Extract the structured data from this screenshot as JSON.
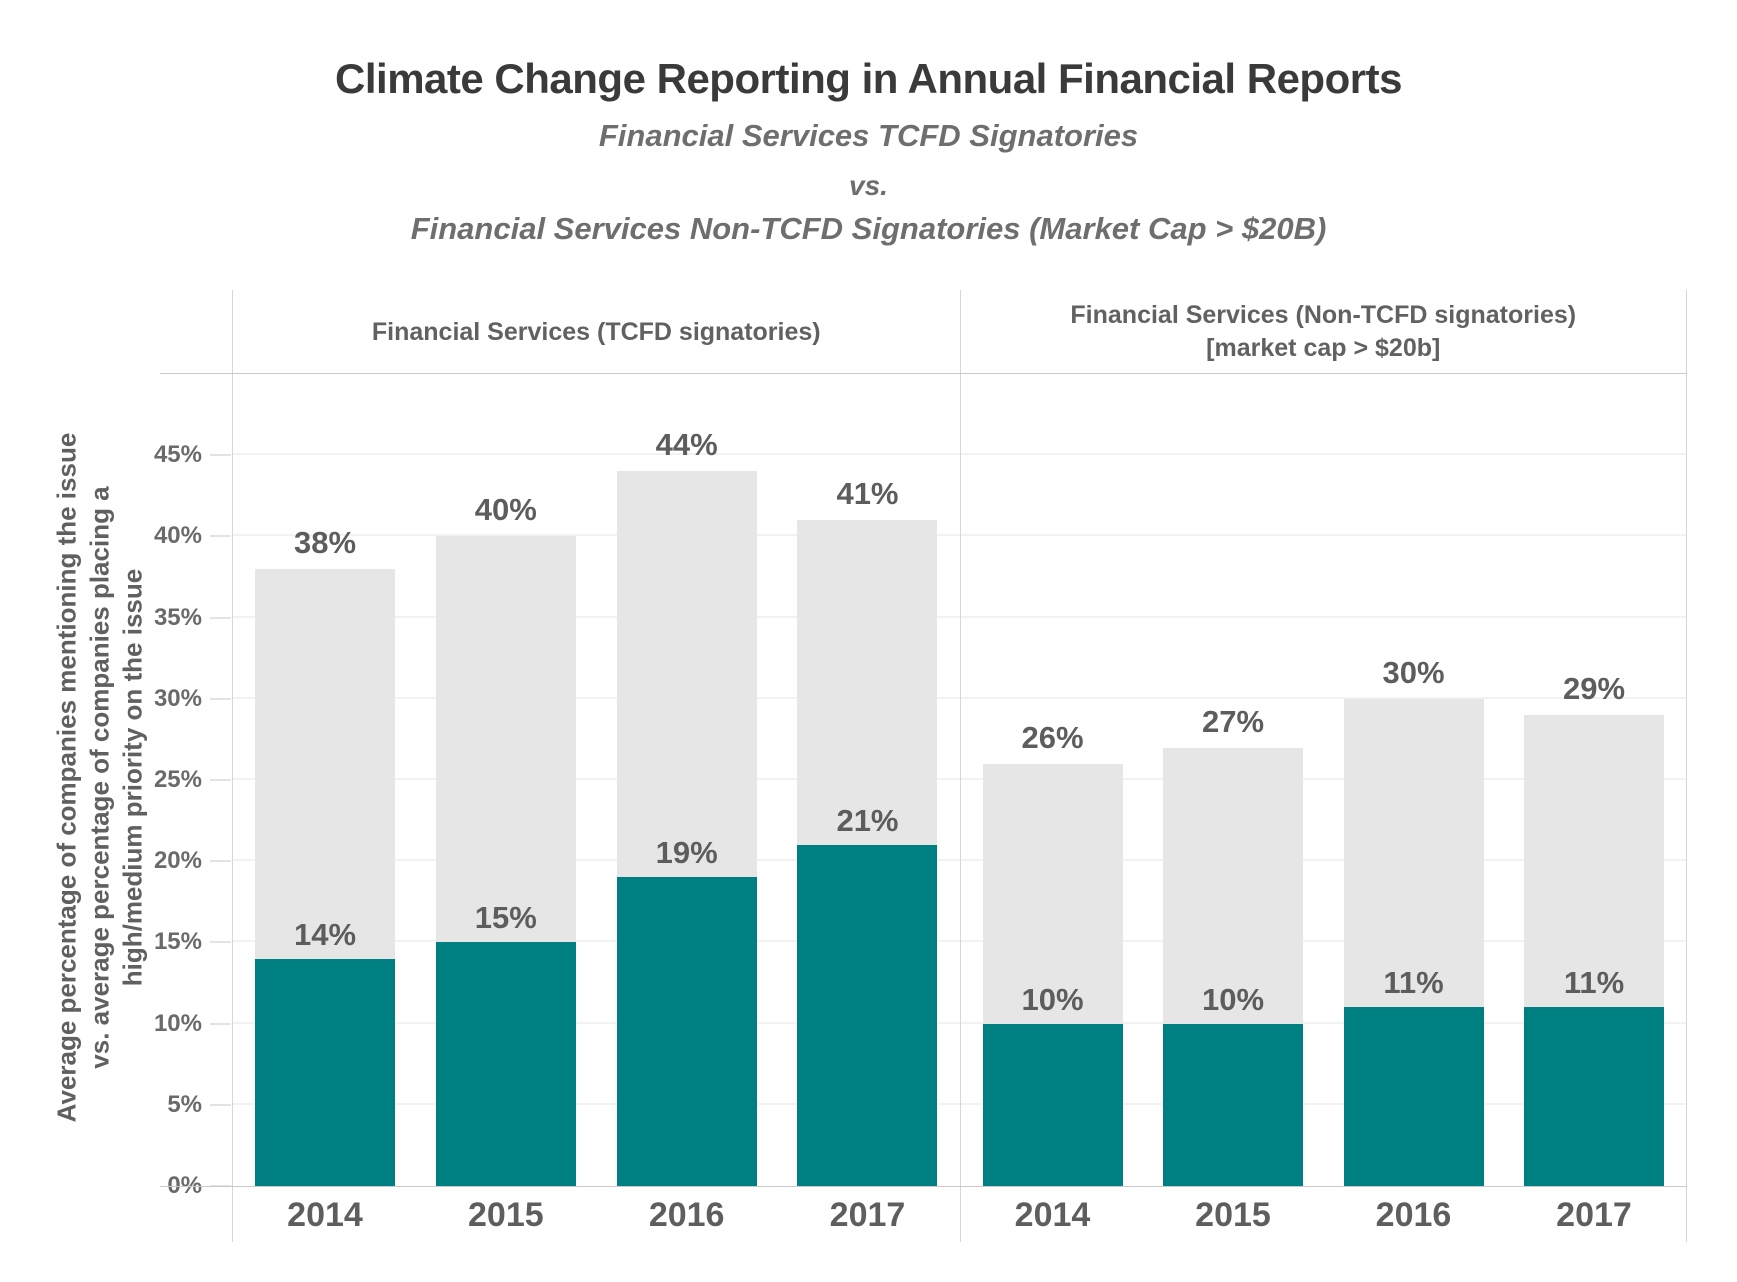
{
  "page_title": "Climate Change Reporting in Annual Financial Reports",
  "header": {
    "title": "Climate Change Reporting in Annual Financial Reports",
    "subtitle_line1": "Financial Services TCFD Signatories",
    "vs_label": "vs.",
    "subtitle_line2": "Financial Services Non-TCFD Signatories (Market Cap > $20B)"
  },
  "colors": {
    "mention_bar": "#e6e6e6",
    "priority_bar": "#007f82",
    "grid_line": "#f2f2f2",
    "panel_border": "#d6d6d6",
    "axis_line": "#c9c9c9",
    "title_text": "#3a3a3a",
    "subtitle_text": "#6e6e6e",
    "value_label_text": "#5d5d5d"
  },
  "chart_data": {
    "type": "bar",
    "title": "Climate Change Reporting in Annual Financial Reports",
    "subtitle": "Financial Services TCFD Signatories vs. Financial Services Non-TCFD Signatories (Market Cap > $20B)",
    "ylabel": "Average percentage of companies mentioning the issue vs. average percentage of companies placing a high/medium priority on the issue",
    "ylabel_lines": [
      "Average percentage of companies mentioning the issue",
      "vs. average percentage of companies placing a",
      "high/medium priority on the issue"
    ],
    "xlabel": "",
    "ylim": [
      0,
      50
    ],
    "grid": true,
    "legend": false,
    "categories": [
      "2014",
      "2015",
      "2016",
      "2017"
    ],
    "y_ticks": [
      {
        "value": 0,
        "label": "0%"
      },
      {
        "value": 5,
        "label": "5%"
      },
      {
        "value": 10,
        "label": "10%"
      },
      {
        "value": 15,
        "label": "15%"
      },
      {
        "value": 20,
        "label": "20%"
      },
      {
        "value": 25,
        "label": "25%"
      },
      {
        "value": 30,
        "label": "30%"
      },
      {
        "value": 35,
        "label": "35%"
      },
      {
        "value": 40,
        "label": "40%"
      },
      {
        "value": 45,
        "label": "45%"
      }
    ],
    "panels": [
      {
        "header_lines": [
          "Financial Services (TCFD signatories)"
        ],
        "series": [
          {
            "name": "Average percentage of companies mentioning the issue",
            "role": "mention",
            "values": [
              38,
              40,
              44,
              41
            ],
            "labels": [
              "38%",
              "40%",
              "44%",
              "41%"
            ]
          },
          {
            "name": "Average percentage of companies placing a high/medium priority on the issue",
            "role": "priority",
            "values": [
              14,
              15,
              19,
              21
            ],
            "labels": [
              "14%",
              "15%",
              "19%",
              "21%"
            ]
          }
        ]
      },
      {
        "header_lines": [
          "Financial Services (Non-TCFD signatories)",
          "[market cap > $20b]"
        ],
        "series": [
          {
            "name": "Average percentage of companies mentioning the issue",
            "role": "mention",
            "values": [
              26,
              27,
              30,
              29
            ],
            "labels": [
              "26%",
              "27%",
              "30%",
              "29%"
            ]
          },
          {
            "name": "Average percentage of companies placing a high/medium priority on the issue",
            "role": "priority",
            "values": [
              10,
              10,
              11,
              11
            ],
            "labels": [
              "10%",
              "10%",
              "11%",
              "11%"
            ]
          }
        ]
      }
    ]
  }
}
